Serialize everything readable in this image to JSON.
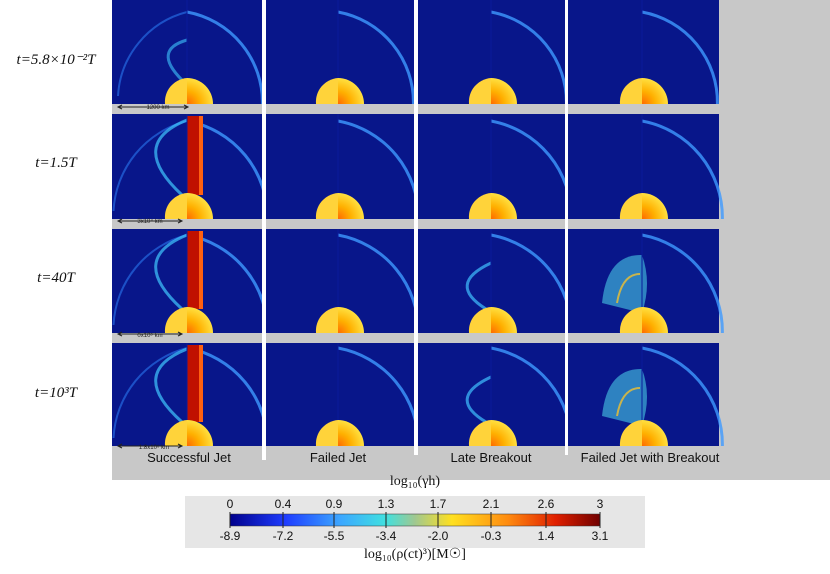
{
  "row_labels": [
    "t=5.8×10⁻²T",
    "t=1.5T",
    "t=40T",
    "t=10³T"
  ],
  "column_labels": [
    "Successful Jet",
    "Failed Jet",
    "Late Breakout",
    "Failed Jet with Breakout"
  ],
  "scale_bars": [
    "1200 km",
    "3x10⁴ km",
    "0x10⁵ km",
    "1.8x10⁶ km"
  ],
  "colorbar": {
    "top_title": "log₁₀(γh)",
    "top_ticks": [
      "0",
      "0.4",
      "0.9",
      "1.3",
      "1.7",
      "2.1",
      "2.6",
      "3"
    ],
    "bottom_ticks": [
      "-8.9",
      "-7.2",
      "-5.5",
      "-3.4",
      "-2.0",
      "-0.3",
      "1.4",
      "3.1"
    ],
    "bottom_title": "log₁₀(ρ(ct)³)[M☉]",
    "colors": [
      "#0000a0",
      "#1e40ff",
      "#3ca0ff",
      "#48d8e8",
      "#c8c860",
      "#ffd020",
      "#ff7010",
      "#b00000"
    ]
  },
  "colors": {
    "panel_bg": "#08168a",
    "gray_band": "#c8c8c8",
    "page_bg": "#ffffff"
  }
}
